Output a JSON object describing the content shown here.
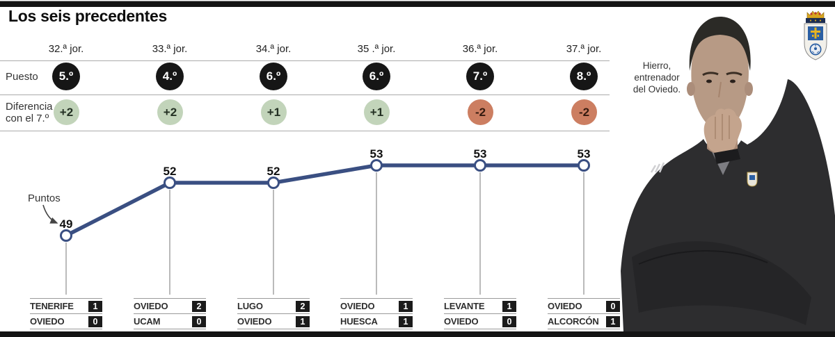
{
  "title": "Los seis precedentes",
  "row_labels": {
    "puesto": "Puesto",
    "diferencia": "Diferencia\ncon el 7.º"
  },
  "puntos_label": "Puntos",
  "photo": {
    "caption": "Hierro,\nentrenador\ndel Oviedo."
  },
  "icons": {
    "club_crest": "real-oviedo-crest",
    "arrow": "curved-arrow-icon"
  },
  "colors": {
    "line": "#3a4f82",
    "positive_bg": "#c2d4ba",
    "negative_bg": "#cc7e61",
    "badge_bg": "#161616",
    "bars": "#141414"
  },
  "columns": [
    {
      "jornada": "32.ª jor.",
      "puesto": "5.º",
      "diff": "+2",
      "puntos": "49",
      "match": {
        "team1": "TENERIFE",
        "score1": "1",
        "team2": "OVIEDO",
        "score2": "0"
      }
    },
    {
      "jornada": "33.ª jor.",
      "puesto": "4.º",
      "diff": "+2",
      "puntos": "52",
      "match": {
        "team1": "OVIEDO",
        "score1": "2",
        "team2": "UCAM",
        "score2": "0"
      }
    },
    {
      "jornada": "34.ª jor.",
      "puesto": "6.º",
      "diff": "+1",
      "puntos": "52",
      "match": {
        "team1": "LUGO",
        "score1": "2",
        "team2": "OVIEDO",
        "score2": "1"
      }
    },
    {
      "jornada": "35 .ª jor.",
      "puesto": "6.º",
      "diff": "+1",
      "puntos": "53",
      "match": {
        "team1": "OVIEDO",
        "score1": "1",
        "team2": "HUESCA",
        "score2": "1"
      }
    },
    {
      "jornada": "36.ª jor.",
      "puesto": "7.º",
      "diff": "-2",
      "puntos": "53",
      "match": {
        "team1": "LEVANTE",
        "score1": "1",
        "team2": "OVIEDO",
        "score2": "0"
      }
    },
    {
      "jornada": "37.ª jor.",
      "puesto": "8.º",
      "diff": "-2",
      "puntos": "53",
      "match": {
        "team1": "OVIEDO",
        "score1": "0",
        "team2": "ALCORCÓN",
        "score2": "1"
      }
    }
  ],
  "chart_data": {
    "type": "line",
    "title": "Los seis precedentes",
    "xlabel": "",
    "ylabel": "Puntos",
    "x_labels": [
      "32.ª jor.",
      "33.ª jor.",
      "34.ª jor.",
      "35 .ª jor.",
      "36.ª jor.",
      "37.ª jor."
    ],
    "series": [
      {
        "name": "Puntos",
        "values": [
          49,
          52,
          52,
          53,
          53,
          53
        ]
      }
    ],
    "point_labels": [
      "49",
      "52",
      "52",
      "53",
      "53",
      "53"
    ],
    "secondary_rows": [
      {
        "label": "Puesto",
        "values": [
          "5.º",
          "4.º",
          "6.º",
          "6.º",
          "7.º",
          "8.º"
        ]
      },
      {
        "label": "Diferencia con el 7.º",
        "values": [
          "+2",
          "+2",
          "+1",
          "+1",
          "-2",
          "-2"
        ]
      }
    ],
    "results": [
      {
        "team1": "TENERIFE",
        "score1": 1,
        "team2": "OVIEDO",
        "score2": 0
      },
      {
        "team1": "OVIEDO",
        "score1": 2,
        "team2": "UCAM",
        "score2": 0
      },
      {
        "team1": "LUGO",
        "score1": 2,
        "team2": "OVIEDO",
        "score2": 1
      },
      {
        "team1": "OVIEDO",
        "score1": 1,
        "team2": "HUESCA",
        "score2": 1
      },
      {
        "team1": "LEVANTE",
        "score1": 1,
        "team2": "OVIEDO",
        "score2": 0
      },
      {
        "team1": "OVIEDO",
        "score1": 0,
        "team2": "ALCORCÓN",
        "score2": 1
      }
    ],
    "ylim": [
      48,
      54
    ],
    "grid": false,
    "legend_position": "none"
  }
}
